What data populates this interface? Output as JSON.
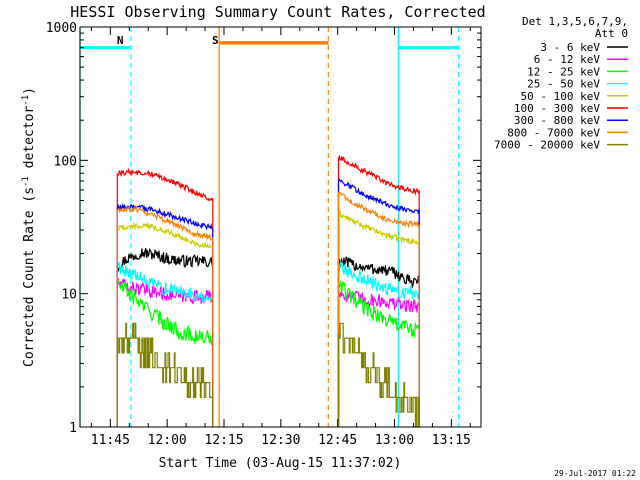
{
  "chart_data": {
    "type": "line",
    "title": "HESSI Observing Summary Count Rates, Corrected",
    "xlabel": "Start Time (03-Aug-15 11:37:02)",
    "ylabel_main": "Corrected Count Rate (s",
    "ylabel_sup1": "-1",
    "ylabel_mid": " detector",
    "ylabel_sup2": "-1",
    "ylabel_end": ")",
    "yscale": "log",
    "ylim": [
      1,
      1000
    ],
    "xlim_minutes": [
      -0.04,
      105.8
    ],
    "x_unit": "minutes after 11:37:02",
    "yticks": [
      {
        "label": "1000",
        "value": 1000
      },
      {
        "label": "100",
        "value": 100
      },
      {
        "label": "10",
        "value": 10
      },
      {
        "label": "1",
        "value": 1
      }
    ],
    "xticks": [
      {
        "label": "11:45",
        "value": 7.97
      },
      {
        "label": "12:00",
        "value": 22.97
      },
      {
        "label": "12:15",
        "value": 37.97
      },
      {
        "label": "12:30",
        "value": 52.97
      },
      {
        "label": "12:45",
        "value": 67.97
      },
      {
        "label": "13:00",
        "value": 82.97
      },
      {
        "label": "13:15",
        "value": 97.97
      }
    ],
    "legend_header": [
      "Det 1,3,5,6,7,9,",
      "Att 0"
    ],
    "legend_position": "right",
    "date_stamp": "29-Jul-2017 01:22",
    "annotations": [
      {
        "label": "N",
        "color": "#00ffff",
        "x_minutes": 9.7
      },
      {
        "label": "S",
        "color": "#ff8000",
        "x_minutes": 34.8
      }
    ],
    "night_bars": [
      {
        "color": "#00ffff",
        "x": [
          -0.04,
          13.4
        ],
        "y": 700
      },
      {
        "color": "#00ffff",
        "x": [
          84.0,
          99.9
        ],
        "y": 700
      }
    ],
    "saa_bars": [
      {
        "color": "#ff8000",
        "x": [
          36.8,
          65.5
        ],
        "y": 760
      }
    ],
    "solid_vlines": [
      {
        "color": "#00ffff",
        "x": -0.04
      },
      {
        "color": "#ff8000",
        "x": 36.7
      },
      {
        "color": "#00ffff",
        "x": 84.0
      }
    ],
    "dashed_vlines": [
      {
        "color": "#00ffff",
        "x": 13.4
      },
      {
        "color": "#ff8000",
        "x": 65.5
      },
      {
        "color": "#00ffff",
        "x": 99.9
      }
    ],
    "data_gaps": [
      [
        -0.04,
        9.8
      ],
      [
        36.7,
        67.9
      ],
      [
        89.7,
        105.8
      ]
    ],
    "segments": [
      [
        9.8,
        36.7
      ],
      [
        67.9,
        89.7
      ]
    ],
    "series": [
      {
        "name": "3 - 6 keV",
        "color": "#000000",
        "noise": 0.045,
        "seg1": [
          [
            9.8,
            16.0
          ],
          [
            12.0,
            18.0
          ],
          [
            16.0,
            20.5
          ],
          [
            20.0,
            19.5
          ],
          [
            24.0,
            18.0
          ],
          [
            28.0,
            17.5
          ],
          [
            32.0,
            17.5
          ],
          [
            35.0,
            17.0
          ]
        ],
        "seg2": [
          [
            68.2,
            17.5
          ],
          [
            72.0,
            16.5
          ],
          [
            76.0,
            15.5
          ],
          [
            80.0,
            15.0
          ],
          [
            84.0,
            14.0
          ],
          [
            86.0,
            12.5
          ],
          [
            89.5,
            12.5
          ]
        ]
      },
      {
        "name": "6 - 12 keV",
        "color": "#ff00ff",
        "noise": 0.05,
        "seg1": [
          [
            9.8,
            12.0
          ],
          [
            14.0,
            11.0
          ],
          [
            18.0,
            10.5
          ],
          [
            22.0,
            10.0
          ],
          [
            26.0,
            9.5
          ],
          [
            30.0,
            9.5
          ],
          [
            35.0,
            9.5
          ]
        ],
        "seg2": [
          [
            68.2,
            10.0
          ],
          [
            72.0,
            9.5
          ],
          [
            76.0,
            9.0
          ],
          [
            80.0,
            8.8
          ],
          [
            84.0,
            8.3
          ],
          [
            89.5,
            8.0
          ]
        ]
      },
      {
        "name": "12 - 25 keV",
        "color": "#00ff00",
        "noise": 0.06,
        "seg1": [
          [
            9.8,
            12.0
          ],
          [
            14.0,
            9.5
          ],
          [
            18.0,
            7.5
          ],
          [
            22.0,
            6.2
          ],
          [
            26.0,
            5.2
          ],
          [
            30.0,
            4.8
          ],
          [
            35.0,
            4.6
          ]
        ],
        "seg2": [
          [
            68.2,
            12.0
          ],
          [
            72.0,
            9.0
          ],
          [
            76.0,
            7.5
          ],
          [
            80.0,
            6.5
          ],
          [
            84.0,
            5.8
          ],
          [
            89.5,
            5.2
          ]
        ]
      },
      {
        "name": "25 - 50 keV",
        "color": "#00ffff",
        "noise": 0.05,
        "seg1": [
          [
            9.8,
            16.0
          ],
          [
            14.0,
            14.0
          ],
          [
            18.0,
            12.0
          ],
          [
            22.0,
            11.0
          ],
          [
            26.0,
            10.5
          ],
          [
            30.0,
            10.0
          ],
          [
            35.0,
            9.0
          ]
        ],
        "seg2": [
          [
            68.2,
            16.0
          ],
          [
            72.0,
            14.0
          ],
          [
            76.0,
            12.5
          ],
          [
            80.0,
            11.0
          ],
          [
            84.0,
            10.5
          ],
          [
            89.5,
            10.0
          ]
        ]
      },
      {
        "name": "50 - 100 keV",
        "color": "#cccc00",
        "noise": 0.02,
        "seg1": [
          [
            9.8,
            31.0
          ],
          [
            14.0,
            32.0
          ],
          [
            18.0,
            32.0
          ],
          [
            22.0,
            30.0
          ],
          [
            26.0,
            27.0
          ],
          [
            30.0,
            24.0
          ],
          [
            35.0,
            22.0
          ]
        ],
        "seg2": [
          [
            68.2,
            40.0
          ],
          [
            72.0,
            35.0
          ],
          [
            76.0,
            31.0
          ],
          [
            80.0,
            28.0
          ],
          [
            84.0,
            26.0
          ],
          [
            89.5,
            24.0
          ]
        ]
      },
      {
        "name": "100 - 300 keV",
        "color": "#ff0000",
        "noise": 0.02,
        "seg1": [
          [
            9.8,
            80.0
          ],
          [
            14.0,
            82.0
          ],
          [
            18.0,
            80.0
          ],
          [
            22.0,
            74.0
          ],
          [
            26.0,
            66.0
          ],
          [
            30.0,
            58.0
          ],
          [
            35.0,
            50.0
          ]
        ],
        "seg2": [
          [
            68.2,
            105.0
          ],
          [
            72.0,
            92.0
          ],
          [
            76.0,
            80.0
          ],
          [
            80.0,
            70.0
          ],
          [
            84.0,
            62.0
          ],
          [
            89.5,
            58.0
          ]
        ]
      },
      {
        "name": "300 - 800 keV",
        "color": "#0000ff",
        "noise": 0.02,
        "seg1": [
          [
            9.8,
            44.0
          ],
          [
            14.0,
            45.0
          ],
          [
            18.0,
            43.0
          ],
          [
            22.0,
            40.0
          ],
          [
            26.0,
            37.0
          ],
          [
            30.0,
            34.0
          ],
          [
            35.0,
            31.0
          ]
        ],
        "seg2": [
          [
            68.2,
            72.0
          ],
          [
            72.0,
            62.0
          ],
          [
            76.0,
            54.0
          ],
          [
            80.0,
            48.0
          ],
          [
            84.0,
            44.0
          ],
          [
            89.5,
            41.0
          ]
        ]
      },
      {
        "name": "800 - 7000 keV",
        "color": "#ff8000",
        "noise": 0.02,
        "seg1": [
          [
            9.8,
            42.0
          ],
          [
            14.0,
            43.0
          ],
          [
            18.0,
            40.0
          ],
          [
            22.0,
            36.0
          ],
          [
            26.0,
            32.0
          ],
          [
            30.0,
            28.0
          ],
          [
            35.0,
            26.0
          ]
        ],
        "seg2": [
          [
            68.2,
            58.0
          ],
          [
            72.0,
            48.0
          ],
          [
            76.0,
            42.0
          ],
          [
            80.0,
            37.0
          ],
          [
            84.0,
            34.0
          ],
          [
            89.5,
            33.0
          ]
        ]
      },
      {
        "name": "7000 - 20000 keV",
        "color": "#808000",
        "noise": 0.12,
        "steps": true,
        "seg1": [
          [
            9.8,
            4.8
          ],
          [
            14.0,
            4.3
          ],
          [
            18.0,
            3.6
          ],
          [
            22.0,
            2.8
          ],
          [
            26.0,
            2.4
          ],
          [
            30.0,
            2.2
          ],
          [
            35.0,
            2.0
          ]
        ],
        "seg2": [
          [
            68.2,
            5.0
          ],
          [
            72.0,
            3.8
          ],
          [
            76.0,
            2.9
          ],
          [
            80.0,
            2.1
          ],
          [
            84.0,
            1.6
          ],
          [
            89.5,
            1.3
          ]
        ]
      }
    ]
  }
}
